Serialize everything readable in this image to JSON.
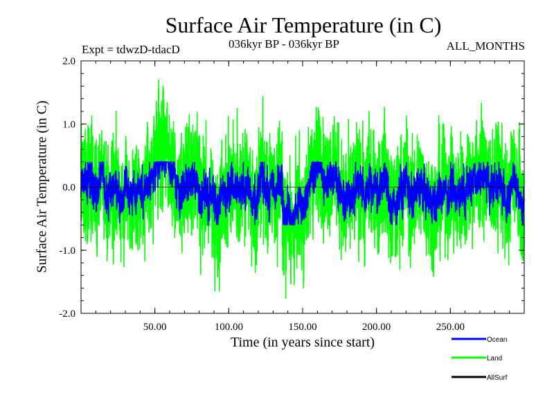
{
  "chart_data": {
    "type": "line",
    "title": "Surface Air Temperature (in C)",
    "subtitle_left": "Expt = tdwzD-tdacD",
    "subtitle_center": "036kyr BP - 036kyr BP",
    "subtitle_right": "ALL_MONTHS",
    "xlabel": "Time (in years since start)",
    "ylabel": "Surface Air Temperature (in C)",
    "xlim": [
      0,
      300
    ],
    "ylim": [
      -2.0,
      2.0
    ],
    "xticks": [
      50,
      100,
      150,
      200,
      250
    ],
    "xtick_labels": [
      "50.00",
      "100.00",
      "150.00",
      "200.00",
      "250.00"
    ],
    "yticks": [
      -2.0,
      -1.0,
      0.0,
      1.0,
      2.0
    ],
    "ytick_labels": [
      "-2.0",
      "-1.0",
      "0.0",
      "1.0",
      "2.0"
    ],
    "grid": false,
    "legend_position": "bottom-right",
    "series": [
      {
        "name": "Land",
        "color": "#00ff00",
        "amplitude": 0.45,
        "min": -1.9,
        "max": 1.7
      },
      {
        "name": "Ocean",
        "color": "#0000ff",
        "amplitude": 0.15,
        "min": -0.6,
        "max": 0.4
      },
      {
        "name": "AllSurf",
        "color": "#000000",
        "amplitude": 0.0
      }
    ],
    "legend": [
      {
        "name": "Ocean",
        "color": "#0000ff"
      },
      {
        "name": "Land",
        "color": "#00ff00"
      },
      {
        "name": "AllSurf",
        "color": "#000000"
      }
    ]
  }
}
